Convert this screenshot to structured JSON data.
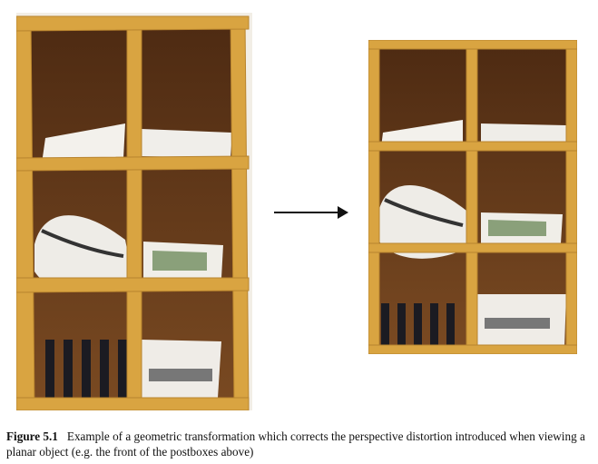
{
  "figure": {
    "label": "Figure 5.1",
    "caption": "Example of a geometric transformation which corrects the perspective distortion introduced when viewing a planar object (e.g. the front of the postboxes above)"
  },
  "icons": {
    "arrow": "right-arrow-icon"
  },
  "colors": {
    "wood": "#d9a441",
    "wood_dark": "#b8842e",
    "cubby_back": "#6b3f1e",
    "paper": "#f3f1ec"
  }
}
